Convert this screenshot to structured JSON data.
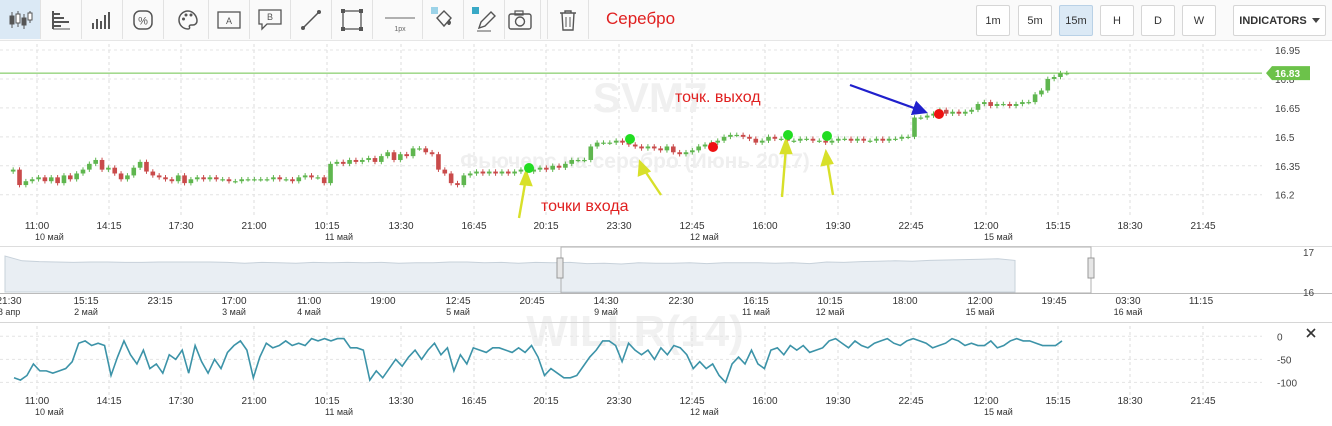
{
  "toolbar": {
    "tools": [
      {
        "name": "candles-icon",
        "active": true
      },
      {
        "name": "hbars-icon",
        "active": false
      },
      {
        "name": "volume-icon",
        "active": false
      },
      {
        "name": "percent-icon",
        "active": false
      },
      {
        "name": "palette-icon",
        "active": false
      },
      {
        "name": "text-label-icon",
        "active": false
      },
      {
        "name": "callout-icon",
        "active": false
      },
      {
        "name": "line-icon",
        "active": false
      },
      {
        "name": "rectangle-icon",
        "active": false
      },
      {
        "name": "line-width-icon",
        "active": false
      },
      {
        "name": "fill-color-icon",
        "active": false
      },
      {
        "name": "pen-color-icon",
        "active": false
      },
      {
        "name": "camera-icon",
        "active": false
      },
      {
        "name": "trash-icon",
        "active": false
      }
    ],
    "text_tool_mark": "A",
    "callout_tool_mark": "B",
    "line_width_label": "1px",
    "title": "Серебро",
    "timeframes": [
      {
        "label": "1m",
        "active": false
      },
      {
        "label": "5m",
        "active": false
      },
      {
        "label": "15m",
        "active": true
      },
      {
        "label": "H",
        "active": false
      },
      {
        "label": "D",
        "active": false
      },
      {
        "label": "W",
        "active": false
      }
    ],
    "indicators_label": "INDICATORS"
  },
  "watermark": {
    "symbol": "SVM7",
    "name": "Фьючерс на серебро (Июнь 2017)",
    "indicator": "WILLR(14)"
  },
  "annotations": {
    "exit": "точк. выход",
    "entry": "точки входа"
  },
  "colors": {
    "up": "#5fb64f",
    "down": "#c94b4b",
    "current_line": "#6cc24a",
    "willr": "#3c93a8",
    "entry_point": "#22dd22",
    "exit_point": "#ee1111",
    "arrow_blue": "#2020cc",
    "arrow_yellow": "#d8e02a",
    "title": "#e02020"
  },
  "chart_data": [
    {
      "type": "candlestick",
      "name": "price",
      "ylim": [
        16.1,
        16.95
      ],
      "y_ticks": [
        16.95,
        16.8,
        16.65,
        16.5,
        16.35,
        16.2
      ],
      "current_price": 16.83,
      "x_ticks": [
        {
          "time": "11:00",
          "date": "10 май"
        },
        {
          "time": "14:15",
          "date": ""
        },
        {
          "time": "17:30",
          "date": ""
        },
        {
          "time": "21:00",
          "date": ""
        },
        {
          "time": "10:15",
          "date": "11 май"
        },
        {
          "time": "13:30",
          "date": ""
        },
        {
          "time": "16:45",
          "date": ""
        },
        {
          "time": "20:15",
          "date": ""
        },
        {
          "time": "23:30",
          "date": ""
        },
        {
          "time": "12:45",
          "date": "12 май"
        },
        {
          "time": "16:00",
          "date": ""
        },
        {
          "time": "19:30",
          "date": ""
        },
        {
          "time": "22:45",
          "date": ""
        },
        {
          "time": "12:00",
          "date": "15 май"
        },
        {
          "time": "15:15",
          "date": ""
        },
        {
          "time": "18:30",
          "date": ""
        },
        {
          "time": "21:45",
          "date": ""
        }
      ],
      "close": [
        16.33,
        16.25,
        16.27,
        16.28,
        16.29,
        16.27,
        16.29,
        16.26,
        16.3,
        16.28,
        16.31,
        16.33,
        16.36,
        16.38,
        16.33,
        16.34,
        16.31,
        16.28,
        16.3,
        16.34,
        16.37,
        16.32,
        16.3,
        16.29,
        16.28,
        16.27,
        16.3,
        16.26,
        16.28,
        16.29,
        16.28,
        16.29,
        16.28,
        16.28,
        16.27,
        16.27,
        16.28,
        16.28,
        16.28,
        16.28,
        16.28,
        16.29,
        16.28,
        16.28,
        16.27,
        16.29,
        16.3,
        16.29,
        16.29,
        16.26,
        16.36,
        16.37,
        16.36,
        16.38,
        16.37,
        16.38,
        16.39,
        16.37,
        16.4,
        16.42,
        16.38,
        16.41,
        16.4,
        16.44,
        16.44,
        16.42,
        16.41,
        16.33,
        16.31,
        16.26,
        16.25,
        16.3,
        16.31,
        16.32,
        16.31,
        16.32,
        16.31,
        16.32,
        16.31,
        16.32,
        16.33,
        16.32,
        16.33,
        16.34,
        16.33,
        16.35,
        16.34,
        16.36,
        16.38,
        16.38,
        16.38,
        16.45,
        16.47,
        16.47,
        16.47,
        16.48,
        16.47,
        16.46,
        16.45,
        16.44,
        16.45,
        16.44,
        16.43,
        16.45,
        16.42,
        16.41,
        16.42,
        16.43,
        16.45,
        16.46,
        16.47,
        16.48,
        16.5,
        16.51,
        16.51,
        16.5,
        16.49,
        16.47,
        16.48,
        16.5,
        16.49,
        16.49,
        16.48,
        16.48,
        16.49,
        16.49,
        16.48,
        16.48,
        16.47,
        16.48,
        16.49,
        16.49,
        16.48,
        16.49,
        16.48,
        16.48,
        16.49,
        16.48,
        16.49,
        16.49,
        16.5,
        16.5,
        16.6,
        16.6,
        16.61,
        16.62,
        16.64,
        16.62,
        16.63,
        16.62,
        16.63,
        16.64,
        16.67,
        16.68,
        16.66,
        16.67,
        16.67,
        16.66,
        16.67,
        16.68,
        16.68,
        16.72,
        16.74,
        16.8,
        16.81,
        16.83,
        16.83
      ]
    },
    {
      "type": "area",
      "name": "navigator",
      "ylim": [
        16,
        17
      ],
      "y_ticks": [
        17,
        16
      ],
      "values": [
        16.9,
        16.78,
        16.76,
        16.75,
        16.74,
        16.75,
        16.75,
        16.74,
        16.74,
        16.75,
        16.75,
        16.75,
        16.75,
        16.74,
        16.72,
        16.74,
        16.73,
        16.72,
        16.74,
        16.73,
        16.74,
        16.73,
        16.74,
        16.72,
        16.73,
        16.73,
        16.75,
        16.75,
        16.73,
        16.74,
        16.72,
        16.74,
        16.73,
        16.74,
        16.71,
        16.72,
        16.7,
        16.73,
        16.72,
        16.72,
        16.73,
        16.71,
        16.73,
        16.73,
        16.73,
        16.72,
        16.73,
        16.71,
        16.75,
        16.74,
        16.76,
        16.77,
        16.78,
        16.77,
        16.79,
        16.8,
        16.81,
        16.82,
        16.83,
        16.79
      ],
      "x_ticks": [
        {
          "time": "21:30",
          "date": "8 апр"
        },
        {
          "time": "15:15",
          "date": "2 май"
        },
        {
          "time": "23:15",
          "date": ""
        },
        {
          "time": "17:00",
          "date": "3 май"
        },
        {
          "time": "11:00",
          "date": "4 май"
        },
        {
          "time": "19:00",
          "date": ""
        },
        {
          "time": "12:45",
          "date": "5 май"
        },
        {
          "time": "20:45",
          "date": ""
        },
        {
          "time": "14:30",
          "date": "9 май"
        },
        {
          "time": "22:30",
          "date": ""
        },
        {
          "time": "16:15",
          "date": "11 май"
        },
        {
          "time": "10:15",
          "date": "12 май"
        },
        {
          "time": "18:00",
          "date": ""
        },
        {
          "time": "12:00",
          "date": "15 май"
        },
        {
          "time": "19:45",
          "date": ""
        },
        {
          "time": "03:30",
          "date": "16 май"
        },
        {
          "time": "11:15",
          "date": ""
        }
      ]
    },
    {
      "type": "line",
      "name": "WILLR(14)",
      "ylim": [
        -110,
        5
      ],
      "y_ticks": [
        0,
        -50,
        -100
      ],
      "values": [
        -90,
        -95,
        -85,
        -60,
        -75,
        -75,
        -80,
        -75,
        -70,
        -55,
        -15,
        -10,
        -20,
        -15,
        -20,
        -85,
        -45,
        -10,
        -40,
        -60,
        -30,
        -70,
        -60,
        -80,
        -40,
        -50,
        -30,
        -80,
        -20,
        -55,
        -80,
        -50,
        -70,
        -35,
        -20,
        -10,
        -30,
        -90,
        -45,
        -15,
        -25,
        -20,
        -10,
        -20,
        -15,
        -20,
        -5,
        -10,
        -5,
        -10,
        -5,
        -5,
        -25,
        -25,
        -30,
        -95,
        -75,
        -90,
        -70,
        -50,
        -65,
        -45,
        -30,
        -50,
        -30,
        -15,
        -40,
        -25,
        -75,
        -40,
        -60,
        -25,
        -30,
        -35,
        -25,
        -25,
        -30,
        -35,
        -25,
        -35,
        -20,
        -45,
        -85,
        -70,
        -80,
        -90,
        -90,
        -85,
        -65,
        -45,
        -30,
        -10,
        -10,
        -20,
        -55,
        -15,
        -30,
        -40,
        -30,
        -50,
        -25,
        -40,
        -20,
        -25,
        -40,
        -70,
        -55,
        -70,
        -60,
        -85,
        -100,
        -60,
        -45,
        -60,
        -30,
        -60,
        -70,
        -30,
        -25,
        -40,
        -20,
        -30,
        -20,
        -35,
        -30,
        -25,
        -10,
        -5,
        -15,
        -25,
        -10,
        -20,
        -25,
        -15,
        -10,
        -5,
        -15,
        -20,
        -10,
        -5,
        -10,
        -15,
        -25,
        -20,
        -15,
        -5,
        -10,
        -20,
        -15,
        -20,
        -20,
        -10,
        -25,
        -20,
        -10,
        -5,
        -10,
        -10,
        -15,
        -20,
        -20,
        -20,
        -10
      ]
    }
  ]
}
